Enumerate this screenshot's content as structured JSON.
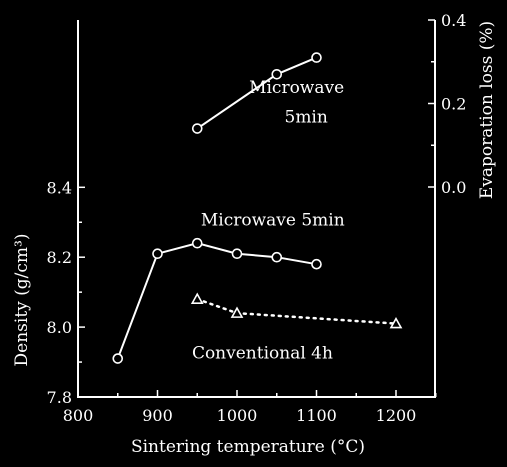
{
  "chart_data": {
    "type": "line",
    "xlabel": "Sintering temperature  (°C)",
    "ylabel": "Density  (g/cm³)",
    "y2label": "Evaporation loss  (%)",
    "xlim": [
      800,
      1250
    ],
    "ylim": [
      7.8,
      9.4
    ],
    "y2lim": [
      -0.1,
      0.4
    ],
    "x_ticks": [
      800,
      900,
      1000,
      1100,
      1200
    ],
    "y_ticks": [
      7.8,
      8.0,
      8.2,
      8.4
    ],
    "y2_ticks": [
      0.0,
      0.2,
      0.4
    ],
    "x_tick_labels": [
      "800",
      "900",
      "1000",
      "1100",
      "1200"
    ],
    "y_tick_labels": [
      "7.8",
      "8.0",
      "8.2",
      "8.4"
    ],
    "y2_tick_labels": [
      "0.0",
      "0.2",
      "0.4"
    ],
    "grid": false,
    "series": [
      {
        "axis": "left",
        "marker": "circle",
        "line": "solid",
        "x": [
          850,
          900,
          950,
          1000,
          1050,
          1100
        ],
        "y": [
          7.91,
          8.21,
          8.24,
          8.21,
          8.2,
          8.18
        ]
      },
      {
        "axis": "left",
        "marker": "triangle",
        "line": "dotted",
        "x": [
          950,
          1000,
          1200
        ],
        "y": [
          8.08,
          8.04,
          8.01
        ]
      },
      {
        "axis": "right",
        "marker": "circle",
        "line": "solid",
        "x": [
          950,
          1050,
          1100
        ],
        "y": [
          0.14,
          0.27,
          0.31
        ]
      }
    ],
    "annotations": [
      {
        "text": "Microwave",
        "x": 1075,
        "y2": 0.225
      },
      {
        "text": "5min",
        "x": 1087,
        "y2": 0.155
      },
      {
        "text": "Microwave  5min",
        "x": 1045,
        "y": 8.29
      },
      {
        "text": "Conventional  4h",
        "x": 1032,
        "y": 7.91
      }
    ]
  }
}
